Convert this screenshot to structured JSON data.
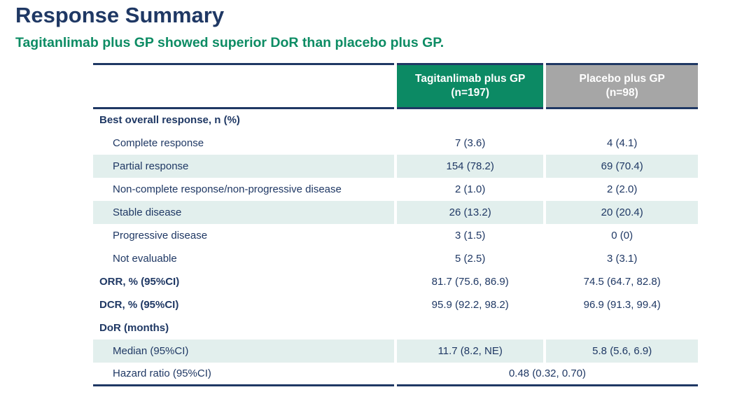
{
  "page": {
    "title": "Response Summary",
    "subtitle": "Tagitanlimab plus GP showed superior DoR than placebo plus GP."
  },
  "colors": {
    "title_navy": "#1F3864",
    "subtitle_green": "#0D8C64",
    "header_green": "#0C8A64",
    "header_gray": "#A6A6A6",
    "band_teal": "#E2EFED",
    "body_text_navy": "#1F3864"
  },
  "table": {
    "columns": [
      {
        "line1": "",
        "line2": ""
      },
      {
        "line1": "Tagitanlimab plus GP",
        "line2": "(n=197)"
      },
      {
        "line1": "Placebo plus GP",
        "line2": "(n=98)"
      }
    ],
    "rows": [
      {
        "label": "Best overall response, n (%)",
        "style": "section",
        "shaded": false
      },
      {
        "label": "Complete response",
        "style": "sub",
        "shaded": false,
        "values": [
          "7 (3.6)",
          "4 (4.1)"
        ]
      },
      {
        "label": "Partial response",
        "style": "sub",
        "shaded": true,
        "values": [
          "154 (78.2)",
          "69 (70.4)"
        ]
      },
      {
        "label": "Non-complete response/non-progressive disease",
        "style": "sub",
        "shaded": false,
        "values": [
          "2 (1.0)",
          "2 (2.0)"
        ]
      },
      {
        "label": "Stable disease",
        "style": "sub",
        "shaded": true,
        "values": [
          "26 (13.2)",
          "20 (20.4)"
        ]
      },
      {
        "label": "Progressive disease",
        "style": "sub",
        "shaded": false,
        "values": [
          "3 (1.5)",
          "0 (0)"
        ]
      },
      {
        "label": "Not evaluable",
        "style": "sub",
        "shaded": false,
        "values": [
          "5 (2.5)",
          "3 (3.1)"
        ]
      },
      {
        "label": "ORR, % (95%CI)",
        "style": "section",
        "shaded": false,
        "values": [
          "81.7 (75.6, 86.9)",
          "74.5 (64.7, 82.8)"
        ]
      },
      {
        "label": "DCR, % (95%CI)",
        "style": "section",
        "shaded": false,
        "values": [
          "95.9 (92.2, 98.2)",
          "96.9 (91.3, 99.4)"
        ]
      },
      {
        "label": "DoR (months)",
        "style": "section",
        "shaded": false
      },
      {
        "label": "Median (95%CI)",
        "style": "sub",
        "shaded": true,
        "values": [
          "11.7 (8.2, NE)",
          "5.8 (5.6, 6.9)"
        ]
      },
      {
        "label": "Hazard ratio (95%CI)",
        "style": "sub",
        "shaded": false,
        "span": "0.48 (0.32, 0.70)"
      }
    ]
  }
}
